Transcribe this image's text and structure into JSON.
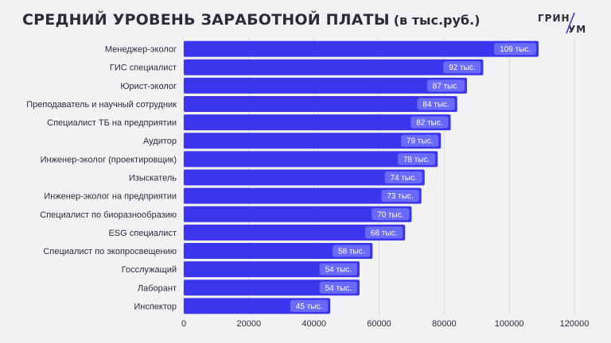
{
  "header": {
    "title": "СРЕДНИЙ УРОВЕНЬ ЗАРАБОТНОЙ ПЛАТЫ",
    "unit": "(в тыс.руб.)"
  },
  "logo": {
    "top": "ГРИН",
    "bottom": "УМ",
    "accent_color": "#3b36ee"
  },
  "colors": {
    "bar": "#3b36ee",
    "label_bg": "#6b6aff",
    "label_text": "#ffffff",
    "grid": "#d8d8de",
    "text": "#2c2c36",
    "background": "#f2f2f4"
  },
  "chart_data": {
    "type": "bar",
    "orientation": "horizontal",
    "categories": [
      "Менеджер-эколог",
      "ГИС специалист",
      "Юрист-эколог",
      "Преподаватель и научный сотрудник",
      "Специалист ТБ на предприятии",
      "Аудитор",
      "Инженер-эколог (проектировщик)",
      "Изыскатель",
      "Инженер-эколог на предприятии",
      "Специалист по биоразнообразию",
      "ESG специалист",
      "Специалист по экопросвещению",
      "Госслужащий",
      "Лаборант",
      "Инспектор"
    ],
    "values": [
      109000,
      92000,
      87000,
      84000,
      82000,
      79000,
      78000,
      74000,
      73000,
      70000,
      68000,
      58000,
      54000,
      54000,
      45000
    ],
    "data_labels": [
      "109 тыс.",
      "92 тыс.",
      "87 тыс.",
      "84 тыс.",
      "82 тыс.",
      "79 тыс.",
      "78 тыс.",
      "74 тыс.",
      "73 тыс.",
      "70 тыс.",
      "68 тыс.",
      "58 тыс.",
      "54 тыс.",
      "54 тыс.",
      "45 тыс."
    ],
    "xlim": [
      0,
      120000
    ],
    "x_ticks": [
      0,
      20000,
      40000,
      60000,
      80000,
      100000,
      120000
    ],
    "x_tick_labels": [
      "0",
      "20000",
      "40000",
      "60000",
      "80000",
      "100000",
      "120000"
    ],
    "grid": true,
    "legend": "none"
  }
}
